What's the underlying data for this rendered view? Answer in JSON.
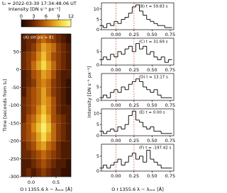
{
  "chart_data": [
    {
      "type": "heatmap",
      "title": "t₀ = 2022-03-30 17:34:48.06 UT",
      "colorbar_label": "Intensity [DN s⁻¹ px⁻¹]",
      "label": "(A) slit pix = 81",
      "ylabel": "Time [seconds from t₀]",
      "xlabel": "O I 1355.6 λ − λᵣₑₛₜ [Å]",
      "xlim": [
        -0.2,
        0.8
      ],
      "ylim": [
        -300,
        100
      ],
      "xticks": [
        {
          "value": 0,
          "label": "0.0"
        },
        {
          "value": 0.5,
          "label": "0.5"
        }
      ],
      "yticks": [
        -300,
        -250,
        -200,
        -150,
        -100,
        -50,
        0,
        50
      ],
      "clim": [
        0,
        12
      ],
      "cticks": [
        0,
        3,
        6,
        9,
        12
      ],
      "colormap": [
        "#1a0600",
        "#5a1f02",
        "#a24a08",
        "#d98a14",
        "#f3d23a",
        "#ffff9a"
      ],
      "xbins": [
        -0.2,
        -0.1,
        0,
        0.1,
        0.2,
        0.3,
        0.4,
        0.5,
        0.6,
        0.7,
        0.8
      ],
      "ybins": [
        -300,
        -275,
        -250,
        -225,
        -200,
        -175,
        -150,
        -125,
        -100,
        -75,
        -50,
        -25,
        0,
        25,
        50,
        75,
        100
      ],
      "z": [
        [
          2,
          3,
          2,
          3,
          4,
          3,
          2,
          2,
          1,
          1
        ],
        [
          2,
          2,
          3,
          4,
          5,
          4,
          3,
          2,
          2,
          1
        ],
        [
          3,
          3,
          4,
          5,
          6,
          5,
          4,
          3,
          2,
          2
        ],
        [
          3,
          4,
          5,
          7,
          8,
          6,
          5,
          3,
          2,
          2
        ],
        [
          4,
          5,
          6,
          8,
          10,
          8,
          6,
          4,
          3,
          2
        ],
        [
          4,
          5,
          7,
          9,
          11,
          9,
          6,
          4,
          3,
          2
        ],
        [
          3,
          5,
          6,
          8,
          10,
          8,
          5,
          4,
          3,
          2
        ],
        [
          3,
          4,
          5,
          7,
          9,
          7,
          5,
          3,
          2,
          2
        ],
        [
          3,
          4,
          5,
          6,
          8,
          7,
          5,
          3,
          2,
          1
        ],
        [
          2,
          4,
          5,
          6,
          8,
          6,
          4,
          3,
          2,
          1
        ],
        [
          2,
          3,
          4,
          6,
          7,
          6,
          4,
          3,
          2,
          1
        ],
        [
          2,
          3,
          5,
          6,
          8,
          7,
          5,
          3,
          2,
          2
        ],
        [
          3,
          4,
          6,
          8,
          10,
          8,
          6,
          4,
          3,
          2
        ],
        [
          3,
          4,
          5,
          7,
          9,
          7,
          5,
          4,
          3,
          2
        ],
        [
          2,
          3,
          4,
          6,
          8,
          7,
          6,
          4,
          3,
          2
        ],
        [
          2,
          3,
          3,
          5,
          6,
          5,
          4,
          3,
          2,
          1
        ]
      ]
    },
    {
      "type": "step",
      "label": "(B) t = 59.83 s",
      "ylabel": "Intensity [DN s⁻¹ px⁻¹]",
      "color": "#000000",
      "ref_color": "#e05a3a",
      "reference_lines": [
        0,
        0.25
      ],
      "xlim": [
        -0.2,
        0.8
      ],
      "ylim": [
        0,
        13
      ],
      "yticks": [
        0,
        5,
        10
      ],
      "xticks": [
        {
          "value": 0,
          "label": "0.00"
        },
        {
          "value": 0.25,
          "label": "0.25"
        },
        {
          "value": 0.5,
          "label": "0.50"
        },
        {
          "value": 0.75,
          "label": "0.75"
        }
      ],
      "x": [
        -0.2,
        -0.15,
        -0.1,
        -0.05,
        0,
        0.05,
        0.1,
        0.15,
        0.2,
        0.25,
        0.3,
        0.35,
        0.4,
        0.45,
        0.5,
        0.55,
        0.6,
        0.65,
        0.7,
        0.75
      ],
      "values": [
        2,
        1,
        3,
        2,
        4,
        3,
        5,
        6,
        8,
        11,
        12,
        9,
        7,
        5,
        4,
        3,
        2,
        2,
        1,
        1
      ]
    },
    {
      "type": "step",
      "label": "(C) t = 31.69 s",
      "color": "#000000",
      "ref_color": "#e05a3a",
      "reference_lines": [
        0,
        0.25
      ],
      "xlim": [
        -0.2,
        0.8
      ],
      "ylim": [
        0,
        10
      ],
      "yticks": [
        0,
        5
      ],
      "xticks": [
        {
          "value": 0,
          "label": "0.00"
        },
        {
          "value": 0.25,
          "label": "0.25"
        },
        {
          "value": 0.5,
          "label": "0.50"
        },
        {
          "value": 0.75,
          "label": "0.75"
        }
      ],
      "x": [
        -0.2,
        -0.15,
        -0.1,
        -0.05,
        0,
        0.05,
        0.1,
        0.15,
        0.2,
        0.25,
        0.3,
        0.35,
        0.4,
        0.45,
        0.5,
        0.55,
        0.6,
        0.65,
        0.7,
        0.75
      ],
      "values": [
        2,
        3,
        2,
        4,
        3,
        5,
        4,
        6,
        7,
        5,
        8,
        6,
        7,
        4,
        5,
        3,
        2,
        3,
        1,
        2
      ]
    },
    {
      "type": "step",
      "label": "(D) t = 13.17 s",
      "color": "#000000",
      "ref_color": "#e05a3a",
      "reference_lines": [
        0,
        0.25
      ],
      "xlim": [
        -0.2,
        0.8
      ],
      "ylim": [
        0,
        10
      ],
      "yticks": [
        0,
        5
      ],
      "xticks": [
        {
          "value": 0,
          "label": "0.00"
        },
        {
          "value": 0.25,
          "label": "0.25"
        },
        {
          "value": 0.5,
          "label": "0.50"
        },
        {
          "value": 0.75,
          "label": "0.75"
        }
      ],
      "x": [
        -0.2,
        -0.15,
        -0.1,
        -0.05,
        0,
        0.05,
        0.1,
        0.15,
        0.2,
        0.25,
        0.3,
        0.35,
        0.4,
        0.45,
        0.5,
        0.55,
        0.6,
        0.65,
        0.7,
        0.75
      ],
      "values": [
        1,
        2,
        1,
        3,
        4,
        3,
        5,
        4,
        6,
        7,
        8,
        7,
        5,
        4,
        3,
        4,
        2,
        1,
        1,
        1
      ]
    },
    {
      "type": "step",
      "label": "(E) t = 0.00 s",
      "color": "#000000",
      "ref_color": "#e05a3a",
      "reference_lines": [
        0,
        0.25
      ],
      "xlim": [
        -0.2,
        0.8
      ],
      "ylim": [
        0,
        12
      ],
      "yticks": [
        0,
        5,
        10
      ],
      "xticks": [
        {
          "value": 0,
          "label": "0.00"
        },
        {
          "value": 0.25,
          "label": "0.25"
        },
        {
          "value": 0.5,
          "label": "0.50"
        },
        {
          "value": 0.75,
          "label": "0.75"
        }
      ],
      "x": [
        -0.2,
        -0.15,
        -0.1,
        -0.05,
        0,
        0.05,
        0.1,
        0.15,
        0.2,
        0.25,
        0.3,
        0.35,
        0.4,
        0.45,
        0.5,
        0.55,
        0.6,
        0.65,
        0.7,
        0.75
      ],
      "values": [
        2,
        1,
        2,
        3,
        2,
        4,
        3,
        5,
        9,
        11,
        7,
        6,
        4,
        3,
        4,
        2,
        2,
        1,
        1,
        1
      ]
    },
    {
      "type": "step",
      "label": "(F) t = -197.42 s",
      "xlabel": "O I 1355.6 λ − λᵣₑₛₜ [Å]",
      "color": "#000000",
      "ref_color": "#e05a3a",
      "reference_lines": [
        0,
        0.25
      ],
      "xlim": [
        -0.2,
        0.8
      ],
      "ylim": [
        0,
        9
      ],
      "yticks": [
        0,
        5
      ],
      "xticks": [
        {
          "value": 0,
          "label": "0.00"
        },
        {
          "value": 0.25,
          "label": "0.25"
        },
        {
          "value": 0.5,
          "label": "0.50"
        },
        {
          "value": 0.75,
          "label": "0.75"
        }
      ],
      "x": [
        -0.2,
        -0.15,
        -0.1,
        -0.05,
        0,
        0.05,
        0.1,
        0.15,
        0.2,
        0.25,
        0.3,
        0.35,
        0.4,
        0.45,
        0.5,
        0.55,
        0.6,
        0.65,
        0.7,
        0.75
      ],
      "values": [
        1,
        2,
        1,
        2,
        3,
        4,
        2,
        3,
        5,
        6,
        4,
        5,
        3,
        7,
        4,
        3,
        2,
        1,
        1,
        1
      ]
    }
  ]
}
